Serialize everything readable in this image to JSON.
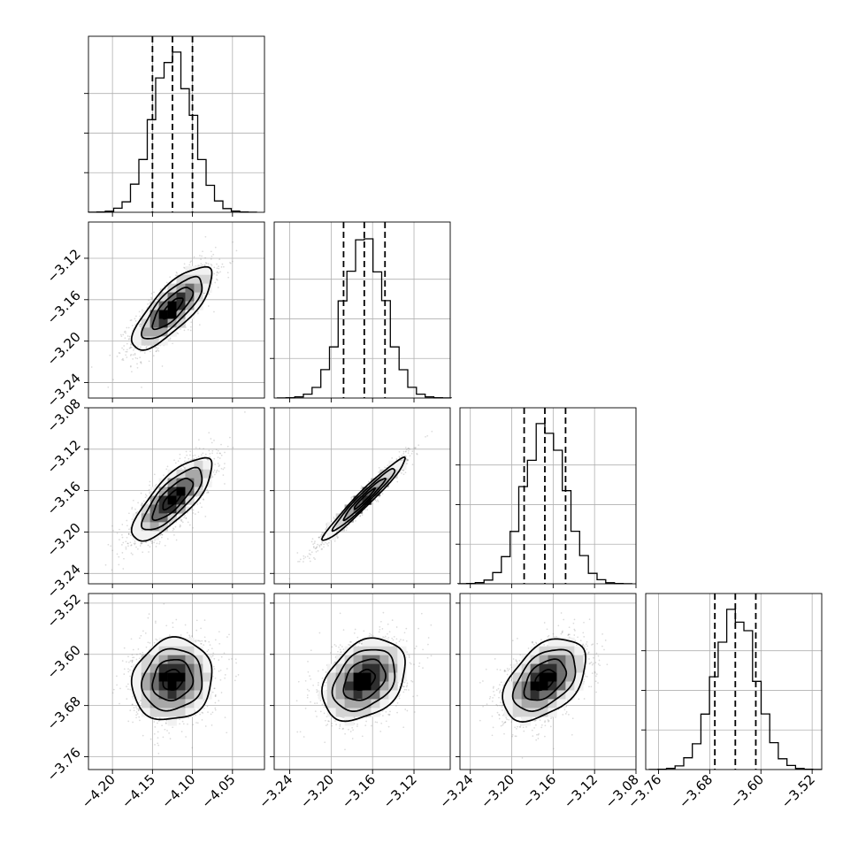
{
  "chart_data": {
    "type": "corner",
    "title": "",
    "grid": true,
    "colors": {
      "frame": "#000000",
      "grid": "#b0b0b0",
      "scatter": "#7a7a7a",
      "histogram": "#000000",
      "quantile": "#000000",
      "density": [
        "#f2f2f2",
        "#d4d4d4",
        "#a8a8a8",
        "#6e6e6e",
        "#2f2f2f",
        "#000000"
      ]
    },
    "parameters": [
      {
        "name": "",
        "range": [
          -4.23,
          -4.01
        ],
        "ticks": [
          -4.2,
          -4.15,
          -4.1,
          -4.05
        ],
        "tick_labels": [
          "−4.20",
          "−4.15",
          "−4.10",
          "−4.05"
        ],
        "mean": -4.125,
        "sd": 0.025,
        "quantiles": [
          -4.15,
          -4.125,
          -4.1
        ]
      },
      {
        "name": "",
        "range": [
          -3.255,
          -3.085
        ],
        "ticks": [
          -3.24,
          -3.2,
          -3.16,
          -3.12
        ],
        "tick_labels": [
          "−3.24",
          "−3.20",
          "−3.16",
          "−3.12"
        ],
        "mean": -3.168,
        "sd": 0.02,
        "quantiles": [
          -3.188,
          -3.168,
          -3.148
        ]
      },
      {
        "name": "",
        "range": [
          -3.25,
          -3.08
        ],
        "ticks": [
          -3.24,
          -3.2,
          -3.16,
          -3.12,
          -3.08
        ],
        "tick_labels": [
          "−3.24",
          "−3.20",
          "−3.16",
          "−3.12",
          "−3.08"
        ],
        "mean": -3.168,
        "sd": 0.02,
        "quantiles": [
          -3.188,
          -3.168,
          -3.148
        ]
      },
      {
        "name": "",
        "range": [
          -3.78,
          -3.505
        ],
        "ticks": [
          -3.76,
          -3.68,
          -3.6,
          -3.52
        ],
        "tick_labels": [
          "−3.76",
          "−3.68",
          "−3.60",
          "−3.52"
        ],
        "mean": -3.64,
        "sd": 0.032,
        "quantiles": [
          -3.672,
          -3.64,
          -3.608
        ]
      }
    ],
    "correlations": [
      {
        "row": 1,
        "col": 0,
        "rho": 0.78
      },
      {
        "row": 2,
        "col": 0,
        "rho": 0.78
      },
      {
        "row": 2,
        "col": 1,
        "rho": 0.97
      },
      {
        "row": 3,
        "col": 0,
        "rho": 0.1
      },
      {
        "row": 3,
        "col": 1,
        "rho": 0.33
      },
      {
        "row": 3,
        "col": 2,
        "rho": 0.45
      }
    ]
  }
}
